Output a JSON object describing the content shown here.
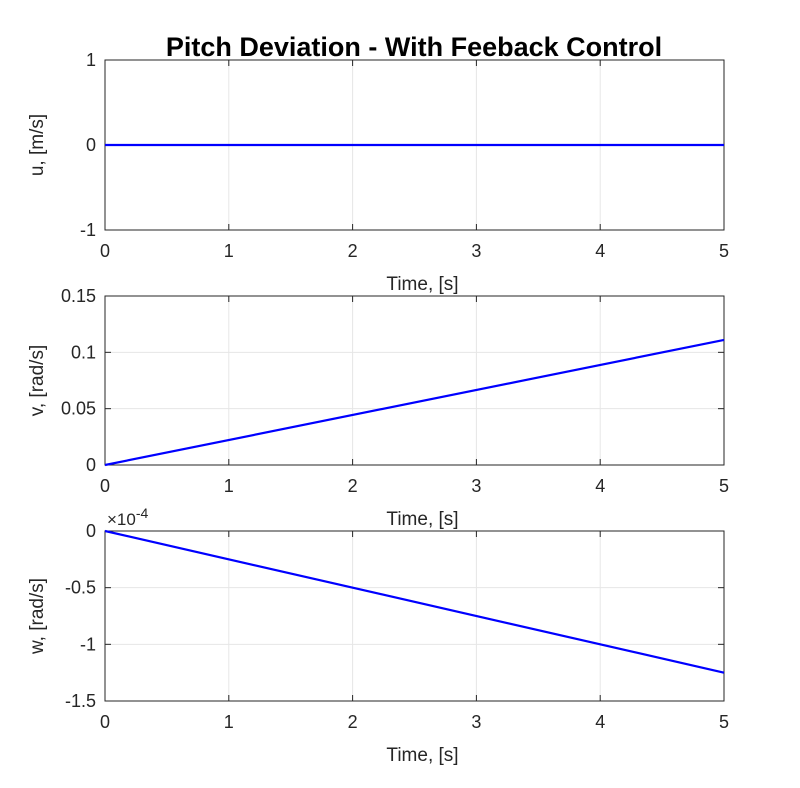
{
  "figure": {
    "title": "Pitch Deviation - With Feeback Control"
  },
  "colors": {
    "line": "#0000ff",
    "grid": "#e6e6e6",
    "axis": "#262626",
    "background": "#ffffff"
  },
  "chart_data": [
    {
      "type": "line",
      "title": "Pitch Deviation - With Feeback Control",
      "xlabel": "Time, [s]",
      "ylabel": "u, [m/s]",
      "xlim": [
        0,
        5
      ],
      "ylim": [
        -1,
        1
      ],
      "grid": true,
      "x": [
        0,
        5
      ],
      "series": [
        {
          "values": [
            0,
            0
          ]
        }
      ],
      "x_ticks": [
        "0",
        "1",
        "2",
        "3",
        "4",
        "5"
      ],
      "y_ticks": [
        "-1",
        "0",
        "1"
      ]
    },
    {
      "type": "line",
      "xlabel": "Time, [s]",
      "ylabel": "v, [rad/s]",
      "xlim": [
        0,
        5
      ],
      "ylim": [
        0,
        0.15
      ],
      "grid": true,
      "x": [
        0,
        5
      ],
      "series": [
        {
          "values": [
            0,
            0.111
          ]
        }
      ],
      "x_ticks": [
        "0",
        "1",
        "2",
        "3",
        "4",
        "5"
      ],
      "y_ticks": [
        "0",
        "0.05",
        "0.1",
        "0.15"
      ]
    },
    {
      "type": "line",
      "xlabel": "Time, [s]",
      "ylabel": "w, [rad/s]",
      "xlim": [
        0,
        5
      ],
      "ylim": [
        -0.00015,
        0
      ],
      "grid": true,
      "exponent_label": "10",
      "exponent_power": "-4",
      "x": [
        0,
        5
      ],
      "series": [
        {
          "values": [
            0,
            -0.000125
          ]
        }
      ],
      "x_ticks": [
        "0",
        "1",
        "2",
        "3",
        "4",
        "5"
      ],
      "y_ticks": [
        "-1.5",
        "-1",
        "-0.5",
        "0"
      ]
    }
  ]
}
